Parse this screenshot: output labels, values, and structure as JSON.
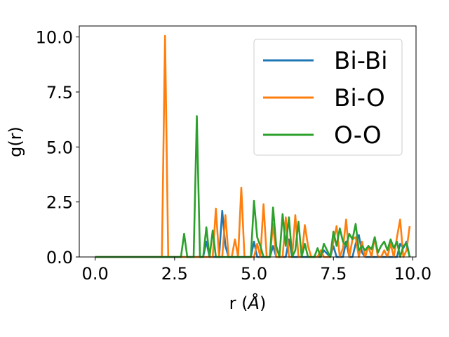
{
  "chart_data": {
    "type": "line",
    "xlabel_main": "r (",
    "xlabel_unit": "Å",
    "xlabel_close": ")",
    "ylabel": "g(r)",
    "xlim": [
      -0.5,
      10.1
    ],
    "ylim": [
      0,
      10.5
    ],
    "xticks": [
      "0.0",
      "2.5",
      "5.0",
      "7.5",
      "10.0"
    ],
    "xtick_values": [
      0,
      2.5,
      5,
      7.5,
      10
    ],
    "yticks": [
      "0.0",
      "2.5",
      "5.0",
      "7.5",
      "10.0"
    ],
    "ytick_values": [
      0,
      2.5,
      5,
      7.5,
      10
    ],
    "grid": false,
    "legend_position": "upper-right",
    "series": [
      {
        "name": "Bi-Bi",
        "color": "#1f77b4",
        "x": [
          0,
          3.4,
          3.5,
          3.6,
          3.9,
          4.0,
          4.1,
          4.2,
          4.9,
          5.0,
          5.1,
          5.2,
          5.5,
          5.6,
          5.7,
          5.8,
          6.0,
          6.1,
          6.2,
          6.3,
          7.1,
          7.2,
          7.4,
          7.5,
          7.6,
          7.8,
          7.9,
          8.0,
          8.1,
          8.2,
          8.3,
          8.4,
          8.5,
          8.6,
          9.5,
          9.6,
          9.7,
          9.8,
          9.9
        ],
        "y": [
          0,
          0,
          0.7,
          0,
          0,
          2.1,
          0.5,
          0,
          0,
          0.7,
          0,
          0,
          0,
          0.5,
          0,
          0,
          0,
          0.8,
          0,
          0,
          0,
          0.3,
          0,
          0.5,
          0,
          0,
          0.7,
          0,
          0,
          0.6,
          1.0,
          0.2,
          0,
          0,
          0,
          0.6,
          0.4,
          0.7,
          0
        ]
      },
      {
        "name": "Bi-O",
        "color": "#ff7f0e",
        "x": [
          0,
          2.1,
          2.2,
          2.3,
          2.4,
          3.7,
          3.8,
          3.9,
          4.0,
          4.1,
          4.2,
          4.3,
          4.4,
          4.5,
          4.6,
          4.7,
          5.0,
          5.1,
          5.2,
          5.3,
          5.4,
          5.5,
          5.6,
          5.7,
          5.8,
          5.9,
          6.0,
          6.1,
          6.2,
          6.3,
          6.4,
          6.5,
          6.6,
          6.7,
          6.8,
          6.9,
          7.0,
          7.1,
          7.2,
          7.3,
          7.4,
          7.5,
          7.6,
          7.7,
          7.8,
          7.9,
          8.0,
          8.1,
          8.2,
          8.3,
          8.4,
          8.5,
          8.6,
          8.7,
          8.8,
          8.9,
          9.0,
          9.1,
          9.2,
          9.3,
          9.4,
          9.5,
          9.6,
          9.7,
          9.8,
          9.9
        ],
        "y": [
          0,
          0,
          10.05,
          0,
          0,
          0,
          2.2,
          0,
          0,
          1.9,
          0,
          0,
          0.8,
          0,
          3.15,
          0,
          0,
          0.6,
          0,
          2.4,
          0,
          0,
          1.5,
          0,
          0,
          0,
          1.8,
          0,
          0,
          1.9,
          0,
          0,
          1.45,
          0.5,
          0,
          0,
          0,
          0.3,
          0,
          0,
          0,
          0.7,
          1.4,
          0,
          0.4,
          1.7,
          0,
          0.8,
          0.9,
          0,
          0.7,
          0,
          0.5,
          0,
          0.9,
          0,
          0,
          0.3,
          0,
          0.6,
          0,
          0.9,
          1.7,
          0,
          0.3,
          1.4
        ]
      },
      {
        "name": "O-O",
        "color": "#2ca02c",
        "x": [
          0,
          2.7,
          2.8,
          2.9,
          3.1,
          3.2,
          3.3,
          3.4,
          3.5,
          3.6,
          3.7,
          3.8,
          3.9,
          4.0,
          4.9,
          5.0,
          5.1,
          5.2,
          5.3,
          5.4,
          5.5,
          5.6,
          5.7,
          5.8,
          5.9,
          6.0,
          6.1,
          6.2,
          6.3,
          6.4,
          6.5,
          6.6,
          6.7,
          6.8,
          6.9,
          7.0,
          7.1,
          7.2,
          7.3,
          7.4,
          7.5,
          7.6,
          7.7,
          7.8,
          7.9,
          8.0,
          8.1,
          8.2,
          8.3,
          8.4,
          8.5,
          8.6,
          8.7,
          8.8,
          8.9,
          9.0,
          9.1,
          9.2,
          9.3,
          9.4,
          9.5,
          9.6,
          9.7,
          9.8,
          9.9
        ],
        "y": [
          0,
          0,
          1.05,
          0,
          0,
          6.4,
          0,
          0,
          1.35,
          0,
          1.2,
          0,
          0,
          0,
          0,
          2.55,
          0.9,
          0.5,
          0,
          0,
          0,
          2.25,
          0.5,
          0,
          1.95,
          0.5,
          1.8,
          0,
          0.3,
          1.6,
          0,
          0.6,
          0,
          0,
          0,
          0.4,
          0,
          0.6,
          0.3,
          0,
          1.15,
          0.5,
          1.3,
          0.7,
          0.5,
          1.05,
          0.8,
          1.5,
          0.3,
          0.5,
          0.3,
          0.5,
          0.35,
          0.9,
          0.2,
          0.5,
          0.7,
          0.3,
          0.8,
          0.4,
          0.7,
          0,
          0.5,
          0.6,
          0
        ]
      }
    ]
  }
}
